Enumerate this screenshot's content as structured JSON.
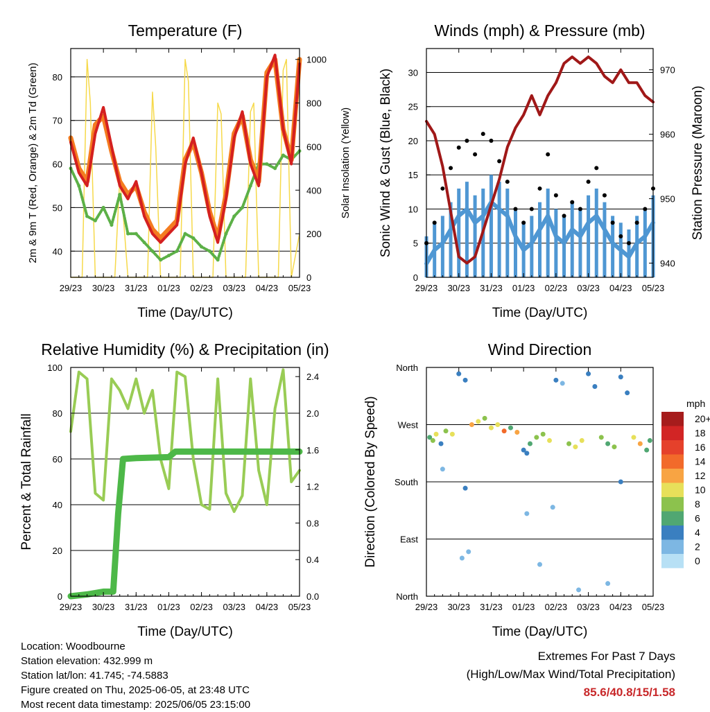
{
  "colors": {
    "red": "#d42020",
    "orange": "#f47c20",
    "green": "#5cb047",
    "yellow": "#f6d94a",
    "blue": "#4f97d3",
    "black": "#000000",
    "maroon": "#a01818",
    "rh": "#99cc55",
    "precip": "#4db848"
  },
  "chart_data": [
    {
      "id": "temperature",
      "type": "line",
      "title": "Temperature (F)",
      "xlabel": "Time (Day/UTC)",
      "ylabel": "2m & 9m T (Red, Orange) & 2m Td (Green)",
      "ylabel_right": "Solar Insolation (Yellow)",
      "x_ticks": [
        "29/23",
        "30/23",
        "31/23",
        "01/23",
        "02/23",
        "03/23",
        "04/23",
        "05/23"
      ],
      "ylim": [
        34,
        86.5
      ],
      "yticks": [
        40,
        50,
        60,
        70,
        80
      ],
      "ylim_right": [
        0,
        1050
      ],
      "yticks_right": [
        0,
        200,
        400,
        600,
        800,
        1000
      ],
      "series": [
        {
          "name": "2m T",
          "color": "red",
          "x": [
            0,
            0.25,
            0.5,
            0.75,
            1,
            1.25,
            1.5,
            1.75,
            2,
            2.25,
            2.5,
            2.75,
            3,
            3.25,
            3.5,
            3.75,
            4,
            4.25,
            4.5,
            4.75,
            5,
            5.25,
            5.5,
            5.75,
            6,
            6.25,
            6.5,
            6.75,
            7
          ],
          "y": [
            65,
            58,
            55,
            67,
            73,
            64,
            55,
            52,
            56,
            48,
            44,
            42,
            44,
            46,
            60,
            66,
            58,
            48,
            42,
            52,
            66,
            72,
            60,
            55,
            80,
            85,
            68,
            60,
            83
          ]
        },
        {
          "name": "9m T",
          "color": "orange",
          "x": [
            0,
            0.25,
            0.5,
            0.75,
            1,
            1.25,
            1.5,
            1.75,
            2,
            2.25,
            2.5,
            2.75,
            3,
            3.25,
            3.5,
            3.75,
            4,
            4.25,
            4.5,
            4.75,
            5,
            5.25,
            5.5,
            5.75,
            6,
            6.25,
            6.5,
            6.75,
            7
          ],
          "y": [
            66,
            59,
            56,
            69,
            71,
            63,
            56,
            53,
            55,
            49,
            45,
            43,
            45,
            47,
            61,
            65,
            58,
            49,
            43,
            53,
            67,
            71,
            61,
            56,
            81,
            84,
            68,
            61,
            84
          ]
        },
        {
          "name": "2m Td",
          "color": "green",
          "x": [
            0,
            0.25,
            0.5,
            0.75,
            1,
            1.25,
            1.5,
            1.75,
            2,
            2.25,
            2.5,
            2.75,
            3,
            3.25,
            3.5,
            3.75,
            4,
            4.25,
            4.5,
            4.75,
            5,
            5.25,
            5.5,
            5.75,
            6,
            6.25,
            6.5,
            6.75,
            7
          ],
          "y": [
            59,
            55,
            48,
            47,
            50,
            46,
            53,
            44,
            44,
            42,
            40,
            38,
            39,
            40,
            44,
            43,
            41,
            40,
            38,
            44,
            48,
            50,
            55,
            60,
            60,
            59,
            62,
            61,
            63
          ]
        },
        {
          "name": "Solar Insolation",
          "color": "yellow",
          "axis": "right",
          "x": [
            0,
            0.35,
            0.5,
            0.6,
            0.75,
            1.35,
            1.5,
            1.6,
            1.75,
            2.35,
            2.5,
            2.6,
            2.75,
            3.35,
            3.5,
            3.6,
            3.75,
            4.35,
            4.5,
            4.6,
            4.75,
            5.35,
            5.5,
            5.6,
            5.75,
            6.35,
            6.5,
            6.6,
            6.75,
            7
          ],
          "y": [
            0,
            0,
            1000,
            800,
            0,
            0,
            450,
            300,
            0,
            0,
            850,
            600,
            0,
            0,
            1000,
            900,
            0,
            0,
            800,
            750,
            0,
            0,
            760,
            800,
            0,
            0,
            950,
            1000,
            0,
            200
          ]
        }
      ]
    },
    {
      "id": "winds",
      "type": "line",
      "title": "Winds (mph) & Pressure (mb)",
      "xlabel": "Time (Day/UTC)",
      "ylabel": "Sonic Wind & Gust (Blue, Black)",
      "ylabel_right": "Station Pressure (Maroon)",
      "x_ticks": [
        "29/23",
        "30/23",
        "31/23",
        "01/23",
        "02/23",
        "03/23",
        "04/23",
        "05/23"
      ],
      "ylim": [
        0,
        33.5
      ],
      "yticks": [
        0,
        5,
        10,
        15,
        20,
        25,
        30
      ],
      "ylim_right": [
        937.8,
        973.3
      ],
      "yticks_right": [
        940,
        950,
        960,
        970
      ],
      "series": [
        {
          "name": "Sonic Wind",
          "color": "blue",
          "x": [
            0,
            0.25,
            0.5,
            0.75,
            1,
            1.25,
            1.5,
            1.75,
            2,
            2.25,
            2.5,
            2.75,
            3,
            3.25,
            3.5,
            3.75,
            4,
            4.25,
            4.5,
            4.75,
            5,
            5.25,
            5.5,
            5.75,
            6,
            6.25,
            6.5,
            6.75,
            7
          ],
          "y": [
            2,
            4,
            5,
            7,
            9,
            10,
            8,
            9,
            11,
            10,
            9,
            6,
            4,
            5,
            7,
            9,
            6,
            5,
            7,
            6,
            8,
            9,
            7,
            5,
            4,
            3,
            5,
            6,
            8
          ]
        },
        {
          "name": "Gust",
          "color": "black",
          "x": [
            0,
            0.25,
            0.5,
            0.75,
            1,
            1.25,
            1.5,
            1.75,
            2,
            2.25,
            2.5,
            2.75,
            3,
            3.25,
            3.5,
            3.75,
            4,
            4.25,
            4.5,
            4.75,
            5,
            5.25,
            5.5,
            5.75,
            6,
            6.25,
            6.5,
            6.75,
            7
          ],
          "y": [
            5,
            8,
            13,
            16,
            19,
            20,
            18,
            21,
            20,
            17,
            14,
            10,
            8,
            10,
            13,
            18,
            12,
            9,
            11,
            10,
            14,
            16,
            12,
            8,
            6,
            5,
            8,
            10,
            13
          ]
        },
        {
          "name": "Station Pressure",
          "color": "maroon",
          "axis": "right",
          "x": [
            0,
            0.25,
            0.5,
            0.75,
            1,
            1.25,
            1.5,
            1.75,
            2,
            2.25,
            2.5,
            2.75,
            3,
            3.25,
            3.5,
            3.75,
            4,
            4.25,
            4.5,
            4.75,
            5,
            5.25,
            5.5,
            5.75,
            6,
            6.25,
            6.5,
            6.75,
            7
          ],
          "y": [
            962,
            960,
            955,
            948,
            941,
            940,
            941,
            945,
            949,
            953,
            958,
            961,
            963,
            966,
            963,
            966,
            968,
            971,
            972,
            971,
            972,
            971,
            969,
            968,
            970,
            968,
            968,
            966,
            965
          ]
        }
      ]
    },
    {
      "id": "humidity",
      "type": "line",
      "title": "Relative Humidity (%) & Precipitation (in)",
      "xlabel": "Time (Day/UTC)",
      "ylabel": "Percent & Total Rainfall",
      "x_ticks": [
        "29/23",
        "30/23",
        "31/23",
        "01/23",
        "02/23",
        "03/23",
        "04/23",
        "05/23"
      ],
      "ylim": [
        0,
        100
      ],
      "yticks": [
        0,
        20,
        40,
        60,
        80,
        100
      ],
      "ylim_right": [
        0,
        2.5
      ],
      "yticks_right": [
        "0.0",
        "0.4",
        "0.8",
        "1.2",
        "1.6",
        "2.0",
        "2.4"
      ],
      "series": [
        {
          "name": "Relative Humidity",
          "color": "rh",
          "x": [
            0,
            0.25,
            0.5,
            0.75,
            1,
            1.25,
            1.5,
            1.75,
            2,
            2.25,
            2.5,
            2.75,
            3,
            3.25,
            3.5,
            3.75,
            4,
            4.25,
            4.5,
            4.75,
            5,
            5.25,
            5.5,
            5.75,
            6,
            6.25,
            6.5,
            6.75,
            7
          ],
          "y": [
            72,
            98,
            95,
            45,
            42,
            95,
            90,
            82,
            95,
            80,
            90,
            60,
            47,
            98,
            96,
            60,
            40,
            38,
            95,
            45,
            37,
            44,
            95,
            55,
            40,
            82,
            99,
            50,
            55
          ]
        },
        {
          "name": "Total Precipitation",
          "color": "precip",
          "axis": "right",
          "x": [
            0,
            0.5,
            1,
            1.3,
            1.45,
            1.6,
            2,
            3,
            3.2,
            4,
            5,
            6,
            7
          ],
          "y": [
            0.0,
            0.02,
            0.05,
            0.05,
            0.9,
            1.5,
            1.51,
            1.52,
            1.58,
            1.58,
            1.58,
            1.58,
            1.58
          ]
        }
      ]
    },
    {
      "id": "wind_direction",
      "type": "scatter",
      "title": "Wind Direction",
      "xlabel": "Time (Day/UTC)",
      "ylabel": "Direction (Colored By Speed)",
      "x_ticks": [
        "29/23",
        "30/23",
        "31/23",
        "01/23",
        "02/23",
        "03/23",
        "04/23",
        "05/23"
      ],
      "yticks": [
        "North",
        "East",
        "South",
        "West",
        "North"
      ],
      "ylim": [
        0,
        360
      ],
      "legend": {
        "title": "mph",
        "labels": [
          "20+",
          "18",
          "16",
          "14",
          "12",
          "10",
          "8",
          "6",
          "4",
          "2",
          "0"
        ],
        "colors": [
          "#a61c1c",
          "#d22525",
          "#e5412b",
          "#f26a2a",
          "#f8a443",
          "#e7e05a",
          "#8cc24d",
          "#50a772",
          "#3a7fc0",
          "#7db7e3",
          "#b7e0f5"
        ]
      },
      "points": {
        "x": [
          0.1,
          0.2,
          0.3,
          0.45,
          0.6,
          0.8,
          1.0,
          1.2,
          1.4,
          1.6,
          1.8,
          2.0,
          2.2,
          2.4,
          2.6,
          2.8,
          3.0,
          3.1,
          3.2,
          3.4,
          3.6,
          3.8,
          4.0,
          4.2,
          4.4,
          4.6,
          4.8,
          5.0,
          5.2,
          5.4,
          5.6,
          5.8,
          6.0,
          6.2,
          6.4,
          6.6,
          6.8,
          6.9,
          1.1,
          1.3,
          3.5,
          4.7,
          5.6,
          0.5,
          1.2,
          3.1,
          3.9,
          6.0
        ],
        "y": [
          250,
          245,
          255,
          240,
          260,
          255,
          350,
          340,
          270,
          275,
          280,
          265,
          270,
          260,
          265,
          258,
          230,
          225,
          240,
          250,
          255,
          245,
          340,
          335,
          240,
          235,
          245,
          350,
          330,
          250,
          240,
          235,
          345,
          320,
          250,
          240,
          230,
          245,
          60,
          70,
          50,
          10,
          20,
          200,
          170,
          130,
          140,
          180
        ],
        "speed": [
          5,
          7,
          9,
          4,
          8,
          9,
          4,
          3,
          12,
          10,
          8,
          9,
          10,
          14,
          6,
          11,
          4,
          3,
          5,
          7,
          8,
          9,
          3,
          2,
          7,
          9,
          10,
          3,
          4,
          8,
          6,
          7,
          3,
          4,
          9,
          11,
          6,
          5,
          1,
          2,
          1,
          1,
          2,
          2,
          3,
          1,
          2,
          3
        ]
      }
    }
  ],
  "info": {
    "location": "Location: Woodbourne",
    "elevation": "Station elevation: 432.999 m",
    "latlon": "Station lat/lon: 41.745; -74.5883",
    "created": "Figure created on Thu, 2025-06-05, at 23:48 UTC",
    "recent": "Most recent data timestamp: 2025/06/05 23:15:00"
  },
  "extremes": {
    "line1": "Extremes For Past 7 Days",
    "line2": "(High/Low/Max Wind/Total Precipitation)",
    "value": "85.6/40.8/15/1.58"
  }
}
